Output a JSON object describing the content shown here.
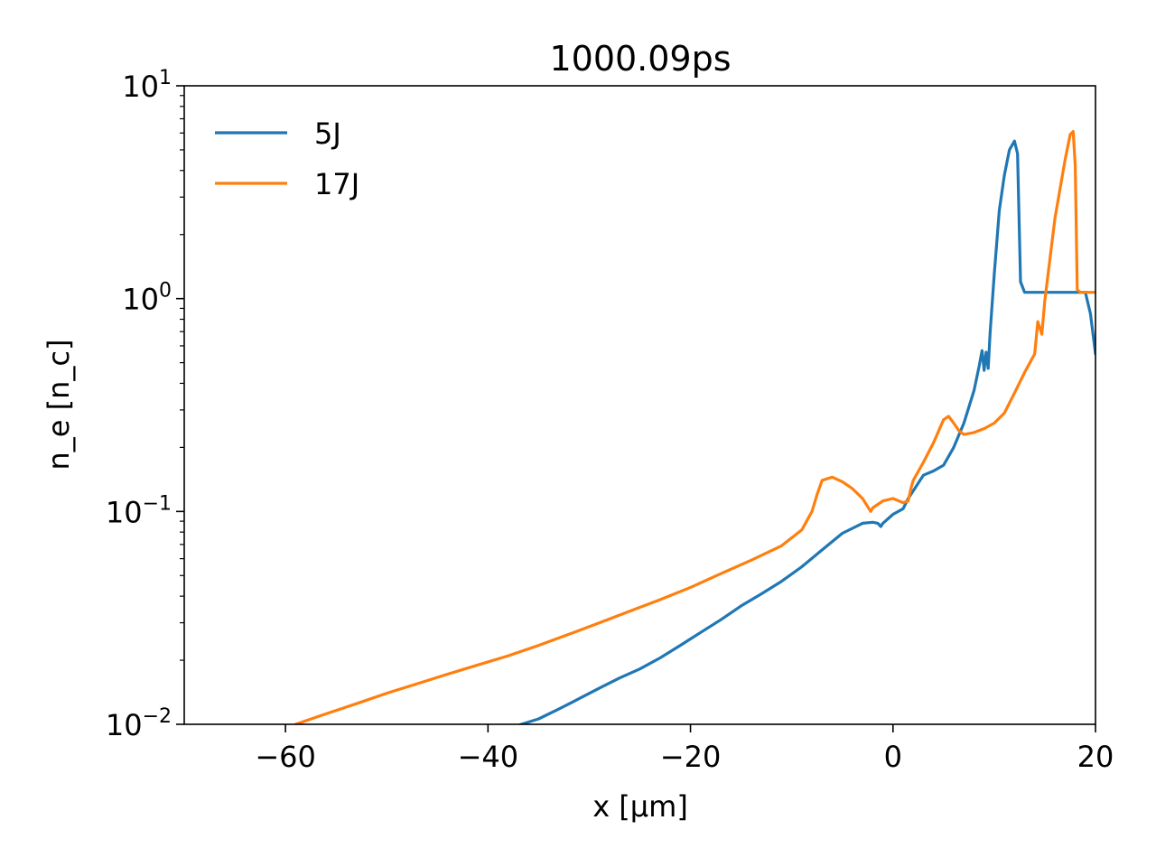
{
  "chart_data": {
    "type": "line",
    "title": "1000.09ps",
    "xlabel": "x [μm]",
    "ylabel": "n_e [n_c]",
    "xlim": [
      -70,
      20
    ],
    "ylim": [
      0.01,
      10
    ],
    "yscale": "log",
    "grid": false,
    "legend_position": "upper-left",
    "x_ticks": [
      -60,
      -40,
      -20,
      0,
      20
    ],
    "x_tick_labels": [
      "−60",
      "−40",
      "−20",
      "0",
      "20"
    ],
    "y_ticks": [
      {
        "value": 10,
        "base": "10",
        "exp": "1"
      },
      {
        "value": 1,
        "base": "10",
        "exp": "0"
      },
      {
        "value": 0.1,
        "base": "10",
        "exp": "−1"
      },
      {
        "value": 0.01,
        "base": "10",
        "exp": "−2"
      }
    ],
    "series": [
      {
        "name": "5J",
        "color": "#1f77b4",
        "x": [
          -37,
          -35,
          -33,
          -31,
          -29,
          -27,
          -25,
          -23,
          -21,
          -19,
          -17,
          -15,
          -13,
          -11,
          -9,
          -7,
          -5,
          -3,
          -2,
          -1.5,
          -1.2,
          -1,
          0,
          1,
          1.5,
          2,
          3,
          4,
          5,
          6,
          7,
          8,
          8.5,
          8.8,
          9.0,
          9.2,
          9.4,
          9.6,
          10,
          10.5,
          11,
          11.5,
          12,
          12.3,
          12.6,
          13,
          14,
          16,
          18,
          19,
          19.5,
          20
        ],
        "y": [
          0.0099,
          0.0106,
          0.0118,
          0.0132,
          0.0148,
          0.0165,
          0.0182,
          0.0205,
          0.0235,
          0.027,
          0.031,
          0.036,
          0.041,
          0.047,
          0.055,
          0.066,
          0.079,
          0.088,
          0.089,
          0.088,
          0.085,
          0.088,
          0.097,
          0.103,
          0.115,
          0.125,
          0.148,
          0.155,
          0.165,
          0.2,
          0.26,
          0.37,
          0.48,
          0.57,
          0.46,
          0.56,
          0.47,
          0.7,
          1.3,
          2.6,
          3.8,
          5.0,
          5.5,
          4.8,
          1.2,
          1.07,
          1.07,
          1.07,
          1.07,
          1.07,
          0.85,
          0.55
        ]
      },
      {
        "name": "17J",
        "color": "#ff7f0e",
        "x": [
          -59,
          -56,
          -53,
          -50,
          -47,
          -44,
          -41,
          -38,
          -35,
          -32,
          -29,
          -26,
          -23,
          -20,
          -17,
          -14,
          -11,
          -9,
          -8,
          -7.5,
          -7,
          -6,
          -5,
          -4,
          -3,
          -2.2,
          -2,
          -1.5,
          -1,
          0,
          1,
          1.5,
          1.8,
          2,
          3,
          4,
          5,
          5.5,
          6,
          6.5,
          7,
          8,
          9,
          10,
          11,
          12,
          13,
          14,
          14.3,
          14.7,
          15,
          16,
          17,
          17.5,
          17.8,
          18,
          18.2,
          18.5,
          19,
          20
        ],
        "y": [
          0.01,
          0.0112,
          0.0125,
          0.014,
          0.0155,
          0.0172,
          0.019,
          0.021,
          0.0235,
          0.0265,
          0.03,
          0.034,
          0.0385,
          0.044,
          0.051,
          0.059,
          0.069,
          0.082,
          0.1,
          0.12,
          0.14,
          0.145,
          0.138,
          0.128,
          0.115,
          0.1,
          0.104,
          0.108,
          0.112,
          0.115,
          0.11,
          0.112,
          0.13,
          0.14,
          0.17,
          0.21,
          0.27,
          0.28,
          0.26,
          0.24,
          0.23,
          0.235,
          0.245,
          0.26,
          0.29,
          0.36,
          0.45,
          0.55,
          0.78,
          0.68,
          0.98,
          2.4,
          4.5,
          5.9,
          6.1,
          4.2,
          1.1,
          1.07,
          1.07,
          1.07
        ]
      }
    ]
  }
}
